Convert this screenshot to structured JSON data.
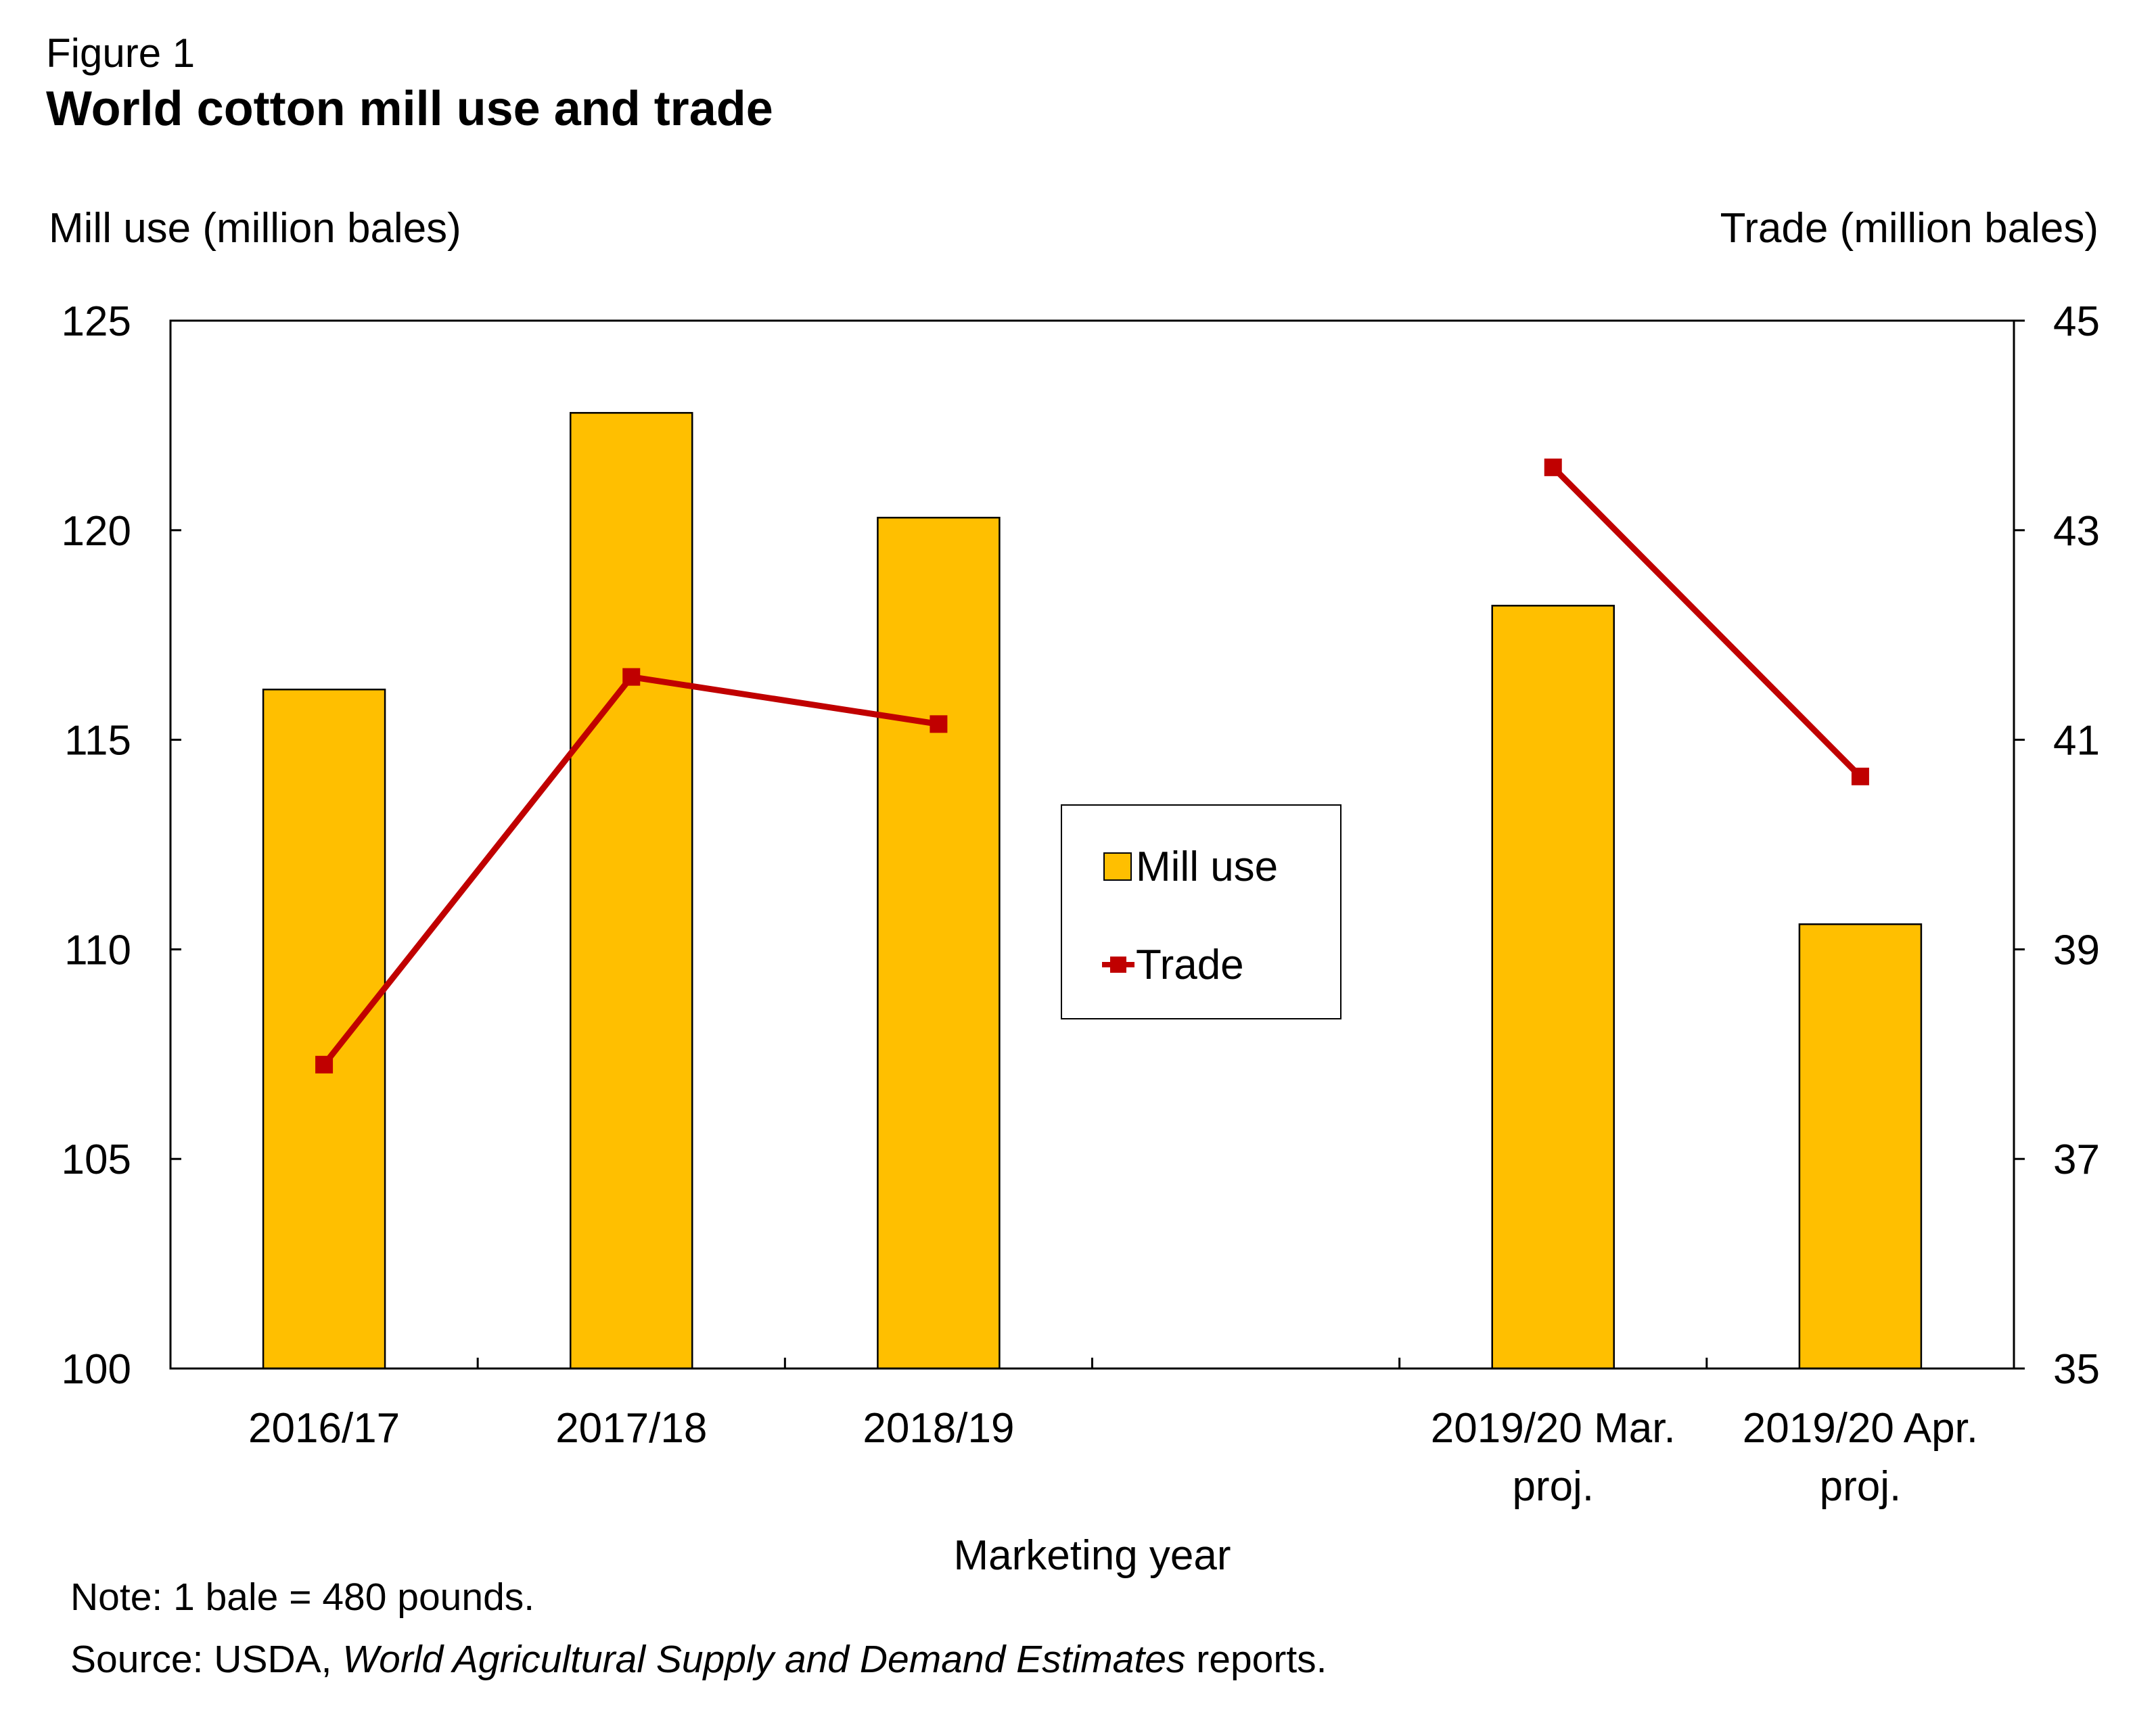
{
  "figure_label": "Figure 1",
  "title": "World cotton mill use and trade",
  "note": "Note: 1 bale = 480 pounds.",
  "source_prefix": "Source: USDA, ",
  "source_italic": "World Agricultural Supply and Demand Estimates",
  "source_suffix": " reports.",
  "chart_data": {
    "type": "bar",
    "xlabel": "Marketing year",
    "ylabel_left": "Mill use (million bales)",
    "ylabel_right": "Trade (million bales)",
    "categories": [
      [
        "2016/17"
      ],
      [
        "2017/18"
      ],
      [
        "2018/19"
      ],
      [
        ""
      ],
      [
        "2019/20 Mar.",
        "proj."
      ],
      [
        "2019/20 Apr.",
        "proj."
      ]
    ],
    "ylim_left": [
      100,
      125
    ],
    "yticks_left": [
      100,
      105,
      110,
      115,
      120,
      125
    ],
    "ylim_right": [
      35,
      45
    ],
    "yticks_right": [
      35,
      37,
      39,
      41,
      43,
      45
    ],
    "series": [
      {
        "name": "Mill use",
        "type": "bar",
        "axis": "left",
        "values": [
          116.2,
          122.8,
          120.3,
          null,
          118.2,
          110.6
        ]
      },
      {
        "name": "Trade",
        "type": "line",
        "axis": "right",
        "values": [
          37.9,
          41.6,
          41.15,
          null,
          43.6,
          40.65
        ]
      }
    ],
    "colors": {
      "bar": "#FFBF00",
      "line": "#C00000",
      "axis": "#000000"
    },
    "legend_position": "center"
  }
}
